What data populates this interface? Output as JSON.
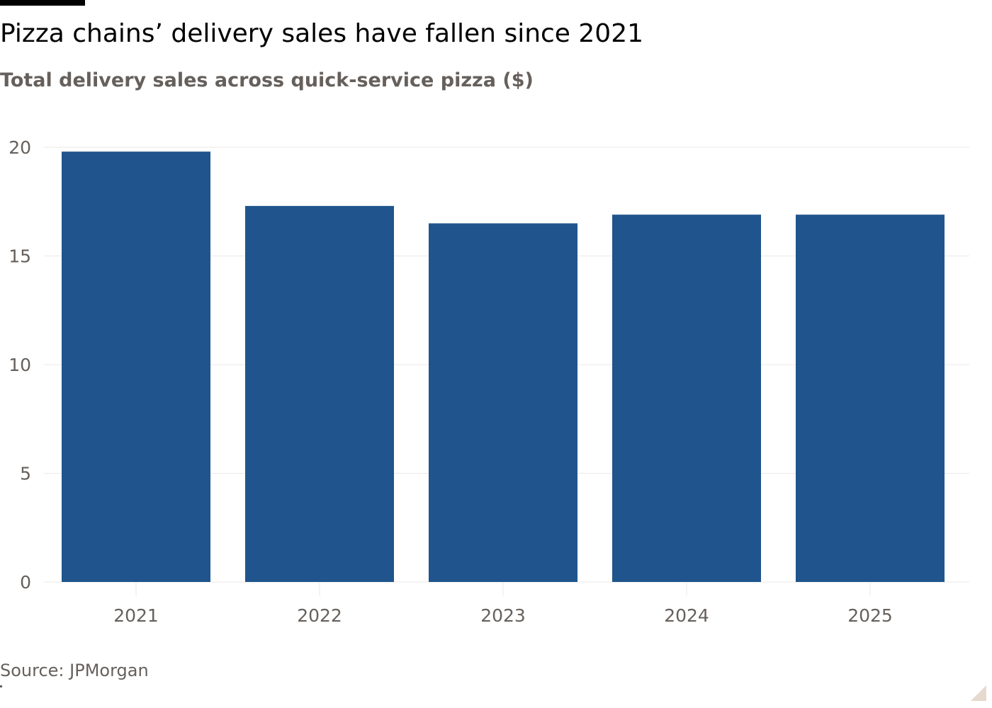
{
  "title": "Pizza chains’ delivery sales have fallen since 2021",
  "subtitle": "Total delivery sales across quick-service pizza ($)",
  "source": "Source: JPMorgan",
  "colors": {
    "bar": "#1f558c",
    "grid": "#ece8e4",
    "axis_text": "#66605c",
    "title": "#000000",
    "top_bar": "#000000"
  },
  "chart_data": {
    "type": "bar",
    "categories": [
      "2021",
      "2022",
      "2023",
      "2024",
      "2025"
    ],
    "values": [
      19.8,
      17.3,
      16.5,
      16.9,
      16.9
    ],
    "title": "Pizza chains’ delivery sales have fallen since 2021",
    "subtitle": "Total delivery sales across quick-service pizza ($)",
    "xlabel": "",
    "ylabel": "",
    "ylim": [
      0,
      20
    ],
    "yticks": [
      0,
      5,
      10,
      15,
      20
    ],
    "grid": true,
    "legend": "none"
  }
}
